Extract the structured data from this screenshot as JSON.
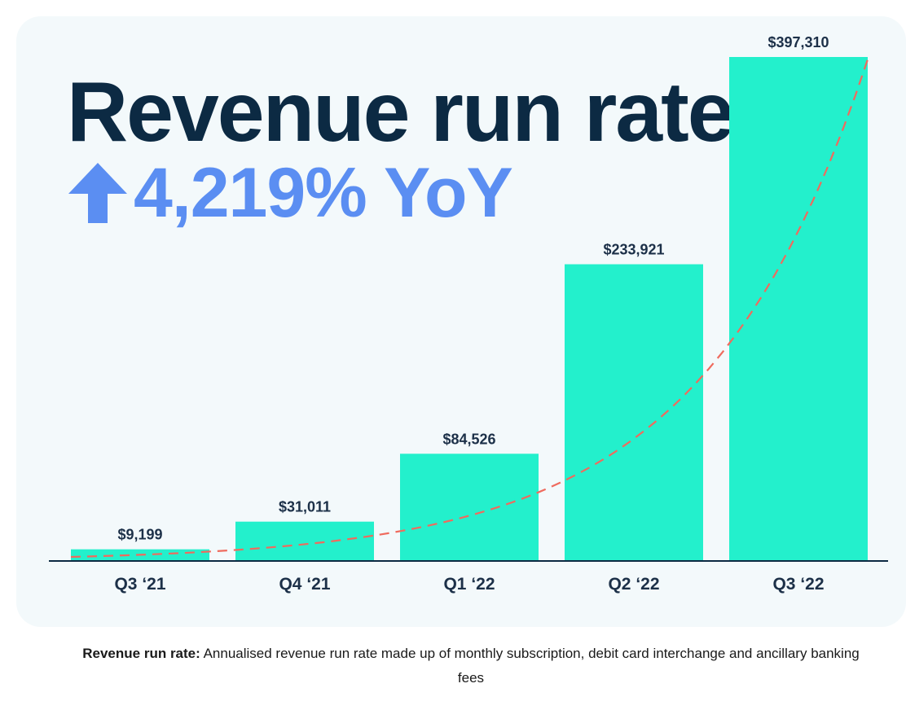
{
  "colors": {
    "card_bg": "#f3f9fb",
    "title": "#0c2a43",
    "accent_blue": "#5b8ef2",
    "bar": "#23f0cc",
    "trend": "#ef6b5e",
    "axis": "#0c2a43",
    "label": "#1c3048"
  },
  "header": {
    "title": "Revenue run rate",
    "growth_text": "4,219% YoY",
    "growth_icon": "arrow-up-icon"
  },
  "chart_data": {
    "type": "bar",
    "title": "Revenue run rate",
    "subtitle": "4,219% YoY",
    "categories": [
      "Q3 ‘21",
      "Q4 ‘21",
      "Q1 ‘22",
      "Q2 ‘22",
      "Q3 ‘22"
    ],
    "values": [
      9199,
      31011,
      84526,
      233921,
      397310
    ],
    "value_labels": [
      "$9,199",
      "$31,011",
      "$84,526",
      "$233,921",
      "$397,310"
    ],
    "ylim": [
      0,
      397310
    ],
    "grid": false,
    "legend": "none",
    "trendline": {
      "style": "dashed",
      "shape": "exponential"
    }
  },
  "footnote": {
    "label": "Revenue run rate:",
    "text": " Annualised revenue run rate made up of monthly subscription, debit card interchange and ancillary banking fees"
  }
}
